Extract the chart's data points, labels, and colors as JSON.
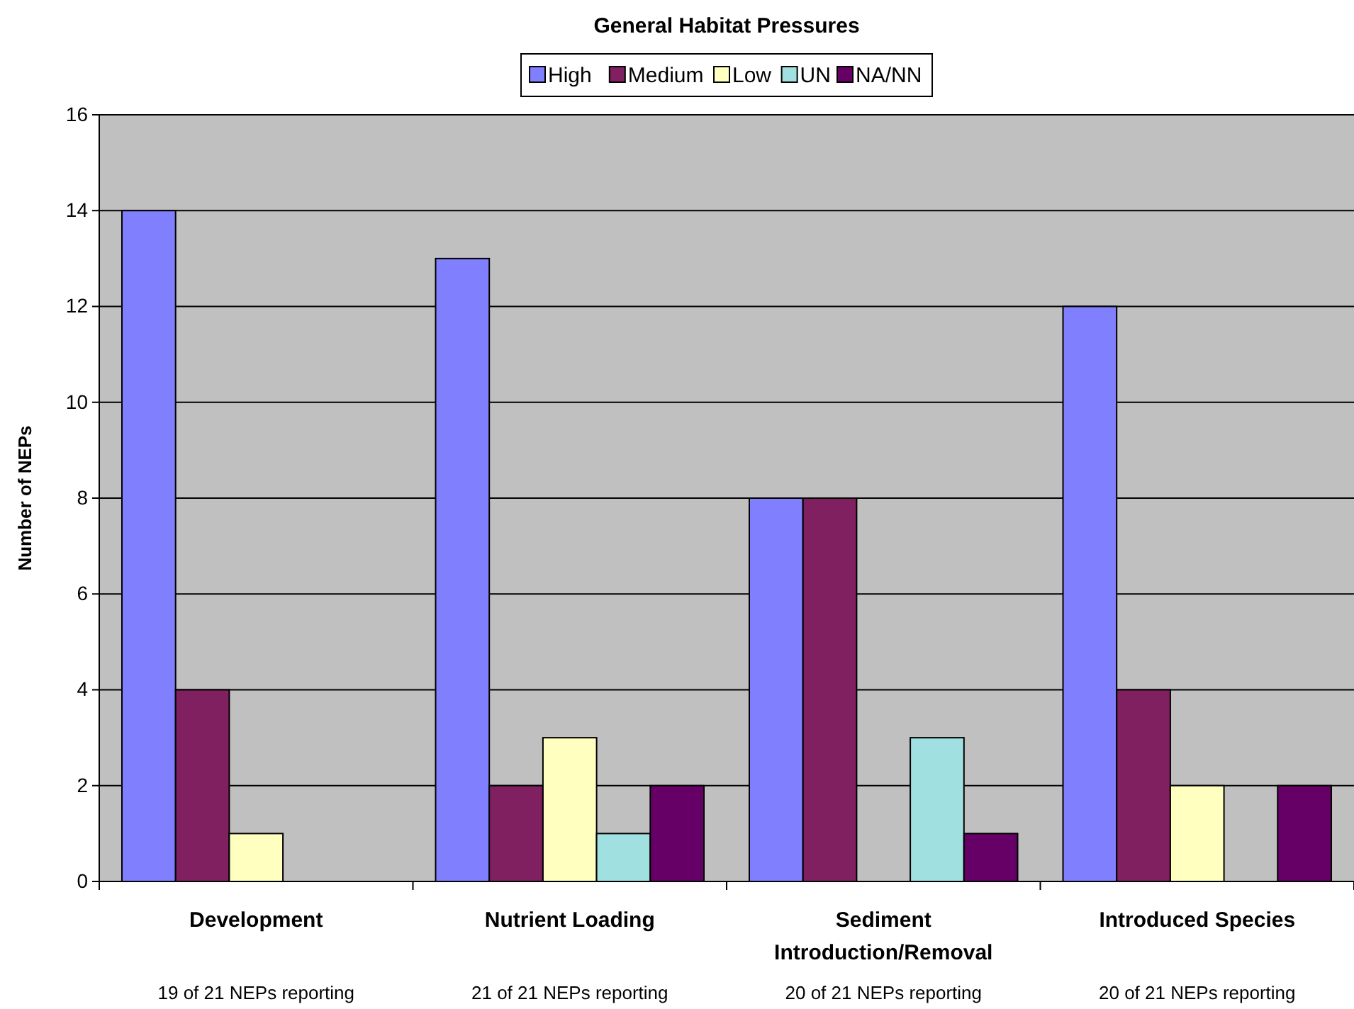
{
  "chart_data": {
    "type": "bar",
    "title": "General Habitat Pressures",
    "ylabel": "Number of NEPs",
    "categories": [
      "Development",
      "Nutrient Loading",
      "Sediment Introduction/Removal",
      "Introduced Species"
    ],
    "series": [
      {
        "name": "High",
        "color": "#8080ff",
        "values": [
          14,
          13,
          8,
          12
        ]
      },
      {
        "name": "Medium",
        "color": "#802060",
        "values": [
          4,
          2,
          8,
          4
        ]
      },
      {
        "name": "Low",
        "color": "#ffffc0",
        "values": [
          1,
          3,
          null,
          2
        ]
      },
      {
        "name": "UN",
        "color": "#a0e0e0",
        "values": [
          null,
          1,
          3,
          null
        ]
      },
      {
        "name": "NA/NN",
        "color": "#660066",
        "values": [
          null,
          2,
          1,
          2
        ]
      }
    ],
    "ylim": [
      0,
      16
    ],
    "yticks": [
      0,
      2,
      4,
      6,
      8,
      10,
      12,
      14,
      16
    ],
    "grid": "y",
    "legend": "top",
    "annotations": [
      "19 of 21 NEPs reporting",
      "21 of 21 NEPs reporting",
      "20 of 21 NEPs reporting",
      "20 of 21 NEPs reporting"
    ]
  }
}
